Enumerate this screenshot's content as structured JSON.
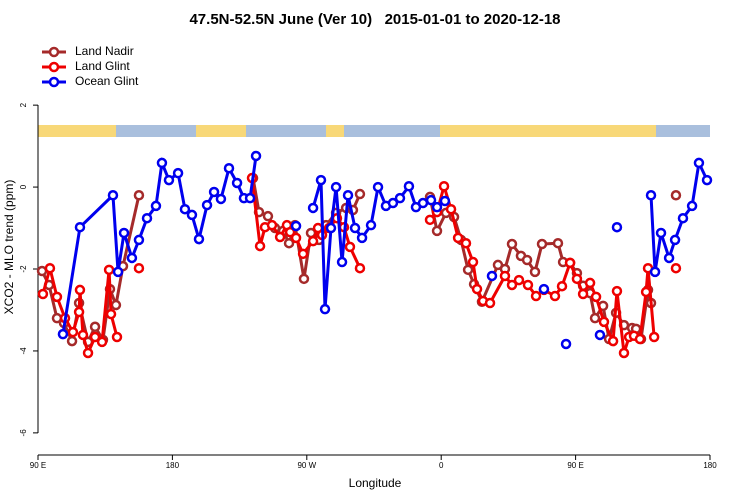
{
  "chart_data": {
    "type": "line",
    "title": "47.5N-52.5N June (Ver 10)   2015-01-01 to 2020-12-18",
    "x_label": "Longitude",
    "y_label": "XCO2 - MLO trend (ppm)",
    "xlim": [
      90,
      540
    ],
    "ylim": [
      -6.54,
      3.59
    ],
    "xticks": [
      {
        "value": 90,
        "label": "90 E"
      },
      180,
      {
        "value": 270,
        "label": "90 W"
      },
      {
        "value": 360,
        "label": "0"
      },
      {
        "value": 450,
        "label": "90 E"
      },
      {
        "value": 540,
        "label": "180"
      }
    ],
    "yticks": [
      2,
      0,
      -2,
      -4,
      -6
    ],
    "legend": "top-left",
    "series": [
      {
        "name": "Land Nadir",
        "color": "#a52a2a",
        "x": [
          92.7,
          97.4,
          102.7,
          107.4,
          112.8,
          117.5,
          123.5,
          128.2,
          133.5,
          138.2,
          142.2,
          146.9,
          157.6,
          null,
          234.0,
          238.0,
          244.0,
          248.7,
          254.1,
          258.1,
          262.1,
          268.1,
          272.8,
          278.2,
          282.9,
          289.6,
          296.3,
          300.9,
          305.6,
          null,
          352.5,
          357.2,
          363.2,
          368.6,
          373.3,
          378.0,
          382.0,
          387.3,
          398.0,
          402.7,
          407.4,
          413.4,
          417.5,
          422.8,
          427.5,
          438.2,
          441.6,
          446.3,
          450.9,
          455.0,
          459.7,
          463.0,
          468.4,
          472.4,
          477.1,
          482.4,
          487.8,
          490.5,
          493.8,
          498.5,
          500.5,
          null,
          517.2
        ],
        "values": [
          -2.05,
          -2.39,
          -3.2,
          -3.32,
          -3.76,
          -2.83,
          -3.78,
          -3.41,
          -3.73,
          -2.49,
          -2.88,
          -1.93,
          -0.2,
          null,
          0.22,
          -0.61,
          -0.71,
          -1.0,
          -1.07,
          -1.37,
          -0.93,
          -2.24,
          -1.12,
          -1.29,
          -0.93,
          -0.63,
          -0.51,
          -0.56,
          -0.17,
          null,
          -0.24,
          -1.07,
          -0.63,
          -0.73,
          -1.29,
          -2.02,
          -2.37,
          -2.8,
          -1.9,
          -2.0,
          -1.39,
          -1.68,
          -1.78,
          -2.07,
          -1.39,
          -1.37,
          -1.83,
          -1.85,
          -2.1,
          -2.41,
          -2.59,
          -3.2,
          -2.9,
          -3.71,
          -3.07,
          -3.37,
          -3.44,
          -3.46,
          -3.71,
          -2.51,
          -2.83,
          null,
          -0.2
        ]
      },
      {
        "name": "Land Glint",
        "color": "#ee0000",
        "x": [
          93.3,
          98.0,
          102.7,
          108.1,
          113.4,
          117.5,
          118.1,
          120.1,
          123.5,
          128.2,
          132.9,
          137.6,
          138.9,
          142.9,
          null,
          157.6,
          null,
          233.3,
          238.7,
          242.0,
          246.7,
          252.1,
          256.7,
          258.8,
          262.8,
          267.5,
          274.2,
          277.5,
          280.2,
          284.9,
          290.2,
          294.9,
          298.9,
          305.6,
          null,
          352.5,
          357.2,
          361.9,
          366.6,
          371.3,
          376.6,
          381.3,
          384.0,
          388.0,
          392.7,
          402.7,
          407.4,
          412.1,
          418.1,
          423.5,
          428.8,
          436.2,
          440.9,
          446.3,
          450.9,
          455.0,
          459.7,
          463.7,
          469.0,
          475.1,
          477.7,
          482.4,
          485.8,
          489.1,
          493.1,
          497.2,
          498.5,
          502.6,
          null,
          517.2
        ],
        "values": [
          -2.61,
          -1.98,
          -2.68,
          -3.2,
          -3.54,
          -3.05,
          -2.51,
          -3.61,
          -4.05,
          -3.66,
          -3.78,
          -2.02,
          -3.1,
          -3.66,
          null,
          -1.98,
          null,
          0.22,
          -1.44,
          -0.98,
          -0.93,
          -1.22,
          -0.93,
          -1.1,
          -1.24,
          -1.63,
          -1.32,
          -1.0,
          -1.17,
          -1.0,
          -0.76,
          -0.98,
          -1.46,
          -1.98,
          null,
          -0.8,
          -0.61,
          0.02,
          -0.54,
          -1.24,
          -1.37,
          -1.83,
          -2.49,
          -2.78,
          -2.83,
          -2.17,
          -2.39,
          -2.27,
          -2.39,
          -2.66,
          -2.51,
          -2.66,
          -2.42,
          -1.85,
          -2.24,
          -2.61,
          -2.34,
          -2.68,
          -3.29,
          -3.76,
          -2.54,
          -4.05,
          -3.66,
          -3.63,
          -3.71,
          -2.56,
          -1.98,
          -3.66,
          null,
          -1.98
        ]
      },
      {
        "name": "Ocean Glint",
        "color": "#0000ee",
        "x": [
          106.7,
          118.1,
          140.2,
          143.6,
          147.6,
          152.9,
          157.6,
          163.0,
          169.0,
          173.0,
          177.7,
          183.8,
          188.4,
          193.1,
          197.8,
          203.2,
          207.9,
          212.5,
          217.9,
          223.3,
          227.9,
          232.0,
          236.0,
          null,
          262.8,
          null,
          274.2,
          279.5,
          282.2,
          286.2,
          289.6,
          293.6,
          297.6,
          302.3,
          307.0,
          313.0,
          317.7,
          323.0,
          327.7,
          332.4,
          338.4,
          343.1,
          347.8,
          353.2,
          357.2,
          362.5,
          null,
          394.0,
          null,
          428.8,
          null,
          443.6,
          null,
          466.3,
          null,
          477.7,
          null,
          500.5,
          503.2,
          507.2,
          512.6,
          516.6,
          521.9,
          528.0,
          532.6,
          538.0
        ],
        "values": [
          -3.59,
          -0.98,
          -0.2,
          -2.07,
          -1.12,
          -1.73,
          -1.29,
          -0.76,
          -0.46,
          0.59,
          0.17,
          0.34,
          -0.54,
          -0.68,
          -1.27,
          -0.44,
          -0.12,
          -0.29,
          0.46,
          0.1,
          -0.27,
          -0.27,
          0.76,
          null,
          -0.95,
          null,
          -0.51,
          0.17,
          -2.98,
          -1.0,
          0.0,
          -1.83,
          -0.2,
          -1.0,
          -1.24,
          -0.93,
          0.0,
          -0.46,
          -0.39,
          -0.27,
          0.02,
          -0.49,
          -0.39,
          -0.32,
          -0.49,
          -0.34,
          null,
          -2.17,
          null,
          -2.49,
          null,
          -3.83,
          null,
          -3.61,
          null,
          -0.98,
          null,
          -0.2,
          -2.07,
          -1.12,
          -1.73,
          -1.29,
          -0.76,
          -0.46,
          0.59,
          0.17
        ]
      }
    ]
  }
}
